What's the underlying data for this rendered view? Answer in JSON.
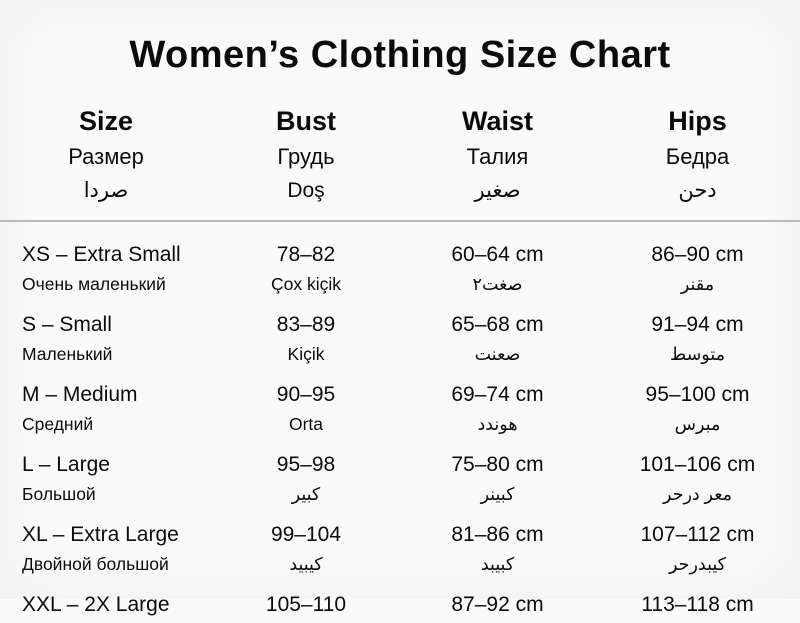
{
  "colors": {
    "text": "#0b0b0b",
    "background": "#fafafa",
    "divider": "#b9b9b9"
  },
  "chart_data": {
    "type": "table",
    "title": "Women’s Clothing Size Chart",
    "columns": [
      {
        "key": "size",
        "en": "Size",
        "ru": "Размер",
        "third": "صردا"
      },
      {
        "key": "bust",
        "en": "Bust",
        "ru": "Грудь",
        "third": "Doş"
      },
      {
        "key": "waist",
        "en": "Waist",
        "ru": "Талия",
        "third": "صغير"
      },
      {
        "key": "hips",
        "en": "Hips",
        "ru": "Бедра",
        "third": "دحن"
      }
    ],
    "rows": [
      {
        "size": "XS – Extra Small",
        "size_sub": "Очень маленький",
        "bust": "78–82",
        "bust_sub": "Çox kiçik",
        "waist": "60–64 cm",
        "waist_sub": "صغت٢",
        "hips": "86–90 cm",
        "hips_sub": "مقنر"
      },
      {
        "size": "S – Small",
        "size_sub": "Маленький",
        "bust": "83–89",
        "bust_sub": "Kiçik",
        "waist": "65–68 cm",
        "waist_sub": "صعنت",
        "hips": "91–94 cm",
        "hips_sub": "متوسط"
      },
      {
        "size": "M – Medium",
        "size_sub": "Средний",
        "bust": "90–95",
        "bust_sub": "Orta",
        "waist": "69–74 cm",
        "waist_sub": "هوندد",
        "hips": "95–100 cm",
        "hips_sub": "مبرس"
      },
      {
        "size": "L – Large",
        "size_sub": "Большой",
        "bust": "95–98",
        "bust_sub": "كبير",
        "waist": "75–80 cm",
        "waist_sub": "كبينر",
        "hips": "101–106 cm",
        "hips_sub": "معر درحر"
      },
      {
        "size": "XL – Extra Large",
        "size_sub": "Двойной большой",
        "bust": "99–104",
        "bust_sub": "كيبيد",
        "waist": "81–86 cm",
        "waist_sub": "كبيبد",
        "hips": "107–112 cm",
        "hips_sub": "كيبدرحر"
      },
      {
        "size": "XXL – 2X Large",
        "size_sub": "",
        "bust": "105–110",
        "bust_sub": "",
        "waist": "87–92 cm",
        "waist_sub": "",
        "hips": "113–118 cm",
        "hips_sub": ""
      }
    ]
  }
}
